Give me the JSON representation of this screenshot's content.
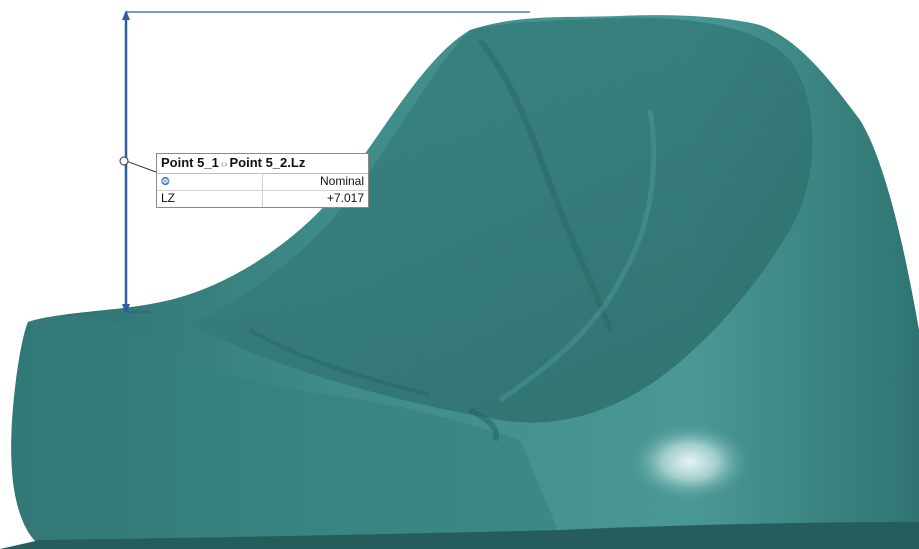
{
  "measurement_label": {
    "title_start": "Point 5_1",
    "title_separator": "‹›",
    "title_end": "Point 5_2.Lz",
    "header_icon": "nominal-icon",
    "header_value": "Nominal",
    "row_label": "LZ",
    "row_value": "+7.017"
  },
  "colors": {
    "surface": "#3e8b89",
    "dimension_line": "#2b5fa0"
  }
}
